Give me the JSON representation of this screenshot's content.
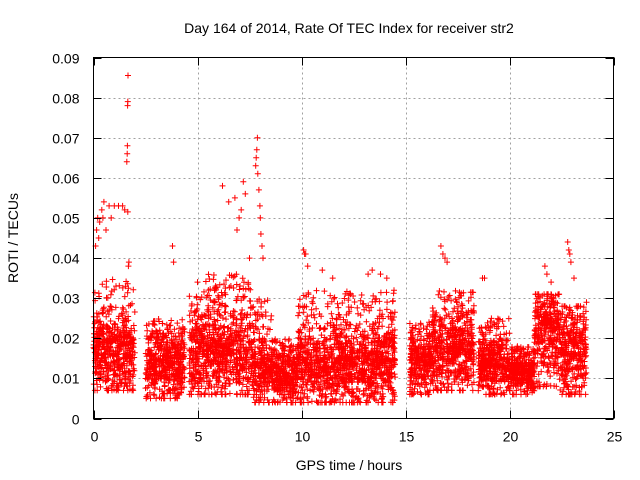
{
  "chart_data": {
    "type": "scatter",
    "title": "Day 164 of 2014, Rate Of TEC Index for receiver str2",
    "xlabel": "GPS time / hours",
    "ylabel": "ROTI / TECUs",
    "xlim": [
      0,
      25
    ],
    "ylim": [
      0,
      0.09
    ],
    "xticks": [
      0,
      5,
      10,
      15,
      20,
      25
    ],
    "yticks": [
      0,
      0.01,
      0.02,
      0.03,
      0.04,
      0.05,
      0.06,
      0.07,
      0.08,
      0.09
    ],
    "xtick_labels": [
      "0",
      "5",
      "10",
      "15",
      "20",
      "25"
    ],
    "ytick_labels": [
      "0",
      "0.01",
      "0.02",
      "0.03",
      "0.04",
      "0.05",
      "0.06",
      "0.07",
      "0.08",
      "0.09"
    ],
    "grid": true,
    "marker": "+",
    "marker_color": "#ff0000",
    "segments": [
      {
        "x_start": 0.0,
        "x_end": 2.0,
        "median": 0.016,
        "low": 0.007,
        "high": 0.035
      },
      {
        "x_start": 2.5,
        "x_end": 4.4,
        "median": 0.013,
        "low": 0.005,
        "high": 0.025
      },
      {
        "x_start": 4.6,
        "x_end": 5.3,
        "median": 0.016,
        "low": 0.006,
        "high": 0.031
      },
      {
        "x_start": 5.3,
        "x_end": 7.6,
        "median": 0.016,
        "low": 0.006,
        "high": 0.036
      },
      {
        "x_start": 7.6,
        "x_end": 8.6,
        "median": 0.012,
        "low": 0.004,
        "high": 0.03
      },
      {
        "x_start": 8.6,
        "x_end": 9.8,
        "median": 0.01,
        "low": 0.004,
        "high": 0.02
      },
      {
        "x_start": 9.8,
        "x_end": 14.5,
        "median": 0.013,
        "low": 0.004,
        "high": 0.032
      },
      {
        "x_start": 15.2,
        "x_end": 16.3,
        "median": 0.014,
        "low": 0.006,
        "high": 0.024
      },
      {
        "x_start": 16.3,
        "x_end": 18.3,
        "median": 0.016,
        "low": 0.007,
        "high": 0.032
      },
      {
        "x_start": 18.5,
        "x_end": 20.0,
        "median": 0.013,
        "low": 0.006,
        "high": 0.025
      },
      {
        "x_start": 20.0,
        "x_end": 21.2,
        "median": 0.011,
        "low": 0.006,
        "high": 0.018
      },
      {
        "x_start": 21.2,
        "x_end": 22.4,
        "median": 0.019,
        "low": 0.008,
        "high": 0.031
      },
      {
        "x_start": 22.4,
        "x_end": 23.7,
        "median": 0.016,
        "low": 0.006,
        "high": 0.028
      }
    ],
    "spikes": [
      [
        0.1,
        0.043
      ],
      [
        0.15,
        0.047
      ],
      [
        0.2,
        0.05
      ],
      [
        0.25,
        0.045
      ],
      [
        0.3,
        0.049
      ],
      [
        0.4,
        0.052
      ],
      [
        0.45,
        0.05
      ],
      [
        0.5,
        0.054
      ],
      [
        0.6,
        0.047
      ],
      [
        0.75,
        0.053
      ],
      [
        0.85,
        0.05
      ],
      [
        1.0,
        0.053
      ],
      [
        1.2,
        0.053
      ],
      [
        1.4,
        0.053
      ],
      [
        1.5,
        0.052
      ],
      [
        1.6,
        0.064
      ],
      [
        1.62,
        0.066
      ],
      [
        1.63,
        0.068
      ],
      [
        1.64,
        0.078
      ],
      [
        1.65,
        0.079
      ],
      [
        1.66,
        0.0855
      ],
      [
        1.65,
        0.0515
      ],
      [
        1.68,
        0.038
      ],
      [
        1.7,
        0.039
      ],
      [
        3.8,
        0.043
      ],
      [
        3.85,
        0.039
      ],
      [
        5.0,
        0.034
      ],
      [
        6.2,
        0.058
      ],
      [
        6.5,
        0.054
      ],
      [
        6.8,
        0.055
      ],
      [
        6.9,
        0.047
      ],
      [
        7.0,
        0.05
      ],
      [
        7.1,
        0.052
      ],
      [
        7.2,
        0.059
      ],
      [
        7.3,
        0.056
      ],
      [
        7.5,
        0.04
      ],
      [
        7.8,
        0.063
      ],
      [
        7.82,
        0.065
      ],
      [
        7.85,
        0.067
      ],
      [
        7.88,
        0.07
      ],
      [
        7.9,
        0.061
      ],
      [
        7.95,
        0.057
      ],
      [
        8.0,
        0.053
      ],
      [
        8.02,
        0.05
      ],
      [
        8.05,
        0.046
      ],
      [
        8.1,
        0.043
      ],
      [
        8.15,
        0.04
      ],
      [
        10.1,
        0.042
      ],
      [
        10.15,
        0.041
      ],
      [
        10.2,
        0.041
      ],
      [
        10.3,
        0.038
      ],
      [
        11.0,
        0.037
      ],
      [
        11.5,
        0.035
      ],
      [
        13.2,
        0.036
      ],
      [
        13.4,
        0.037
      ],
      [
        13.8,
        0.036
      ],
      [
        14.1,
        0.035
      ],
      [
        16.7,
        0.043
      ],
      [
        16.8,
        0.041
      ],
      [
        16.9,
        0.04
      ],
      [
        17.0,
        0.039
      ],
      [
        18.7,
        0.035
      ],
      [
        18.8,
        0.035
      ],
      [
        21.7,
        0.038
      ],
      [
        21.8,
        0.036
      ],
      [
        22.0,
        0.034
      ],
      [
        22.8,
        0.044
      ],
      [
        22.85,
        0.042
      ],
      [
        22.9,
        0.041
      ],
      [
        22.95,
        0.039
      ],
      [
        23.1,
        0.035
      ],
      [
        23.7,
        0.029
      ]
    ]
  }
}
